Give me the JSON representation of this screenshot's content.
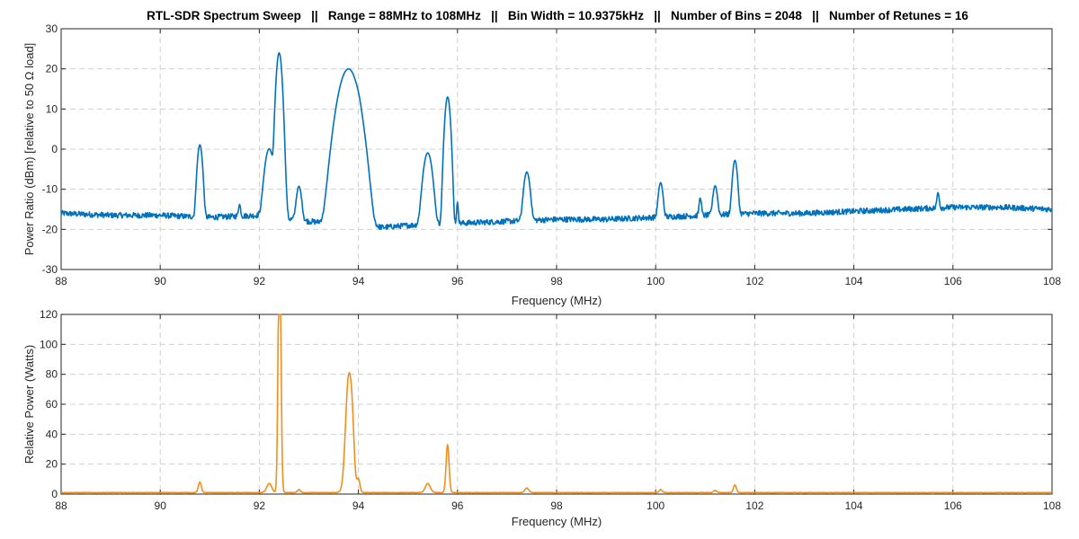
{
  "title": "RTL-SDR Spectrum Sweep   ||   Range = 88MHz to 108MHz   ||   Bin Width = 10.9375kHz   ||   Number of Bins = 2048   ||   Number of Retunes = 16",
  "chart_data": [
    {
      "type": "line",
      "xlabel": "Frequency (MHz)",
      "ylabel": "Power Ratio (dBm)  [relative to 50 Ω load]",
      "xlim": [
        88,
        108
      ],
      "ylim": [
        -30,
        30
      ],
      "xticks": [
        88,
        90,
        92,
        94,
        96,
        98,
        100,
        102,
        104,
        106,
        108
      ],
      "yticks": [
        -30,
        -20,
        -10,
        0,
        10,
        20,
        30
      ],
      "grid": true,
      "color": "#0072BD",
      "baseline": [
        [
          88,
          -16
        ],
        [
          89,
          -16.5
        ],
        [
          90,
          -16.5
        ],
        [
          91,
          -17
        ],
        [
          92,
          -16.5
        ],
        [
          93,
          -18
        ],
        [
          94,
          -19
        ],
        [
          94.5,
          -19.5
        ],
        [
          95,
          -19
        ],
        [
          96,
          -18.5
        ],
        [
          97,
          -18
        ],
        [
          98,
          -17.5
        ],
        [
          99,
          -17.5
        ],
        [
          100,
          -17
        ],
        [
          101,
          -16.5
        ],
        [
          102,
          -16
        ],
        [
          103,
          -16
        ],
        [
          104,
          -15.5
        ],
        [
          105,
          -15
        ],
        [
          106,
          -14.5
        ],
        [
          107,
          -14.5
        ],
        [
          108,
          -15
        ]
      ],
      "peaks": [
        {
          "f": 90.8,
          "peak": 1,
          "width": 0.035
        },
        {
          "f": 91.6,
          "peak": -17,
          "width": 0.02
        },
        {
          "f": 92.2,
          "peak": 0,
          "width": 0.06
        },
        {
          "f": 92.4,
          "peak": 24,
          "width": 0.035
        },
        {
          "f": 92.5,
          "peak": -7,
          "width": 0.03
        },
        {
          "f": 92.8,
          "peak": -10,
          "width": 0.04
        },
        {
          "f": 93.8,
          "peak": 20,
          "width": 0.12
        },
        {
          "f": 94.0,
          "peak": 2,
          "width": 0.035
        },
        {
          "f": 95.4,
          "peak": -1,
          "width": 0.06
        },
        {
          "f": 95.8,
          "peak": 13,
          "width": 0.035
        },
        {
          "f": 96.0,
          "peak": -15,
          "width": 0.015
        },
        {
          "f": 97.4,
          "peak": -6,
          "width": 0.045
        },
        {
          "f": 100.1,
          "peak": -9,
          "width": 0.035
        },
        {
          "f": 100.9,
          "peak": -14,
          "width": 0.02
        },
        {
          "f": 101.2,
          "peak": -10,
          "width": 0.035
        },
        {
          "f": 101.6,
          "peak": -3,
          "width": 0.035
        },
        {
          "f": 105.7,
          "peak": -13,
          "width": 0.02
        }
      ]
    },
    {
      "type": "line",
      "xlabel": "Frequency (MHz)",
      "ylabel": "Relative Power (Watts)",
      "xlim": [
        88,
        108
      ],
      "ylim": [
        0,
        120
      ],
      "xticks": [
        88,
        90,
        92,
        94,
        96,
        98,
        100,
        102,
        104,
        106,
        108
      ],
      "yticks": [
        0,
        20,
        40,
        60,
        80,
        100,
        120
      ],
      "grid": true,
      "color": "#F28E1A",
      "baseline_value": 1,
      "peaks": [
        {
          "f": 90.8,
          "peak": 7,
          "width": 0.03
        },
        {
          "f": 92.2,
          "peak": 6,
          "width": 0.05
        },
        {
          "f": 92.4,
          "peak": 116,
          "width": 0.025
        },
        {
          "f": 92.42,
          "peak": 84,
          "width": 0.025
        },
        {
          "f": 92.8,
          "peak": 2,
          "width": 0.03
        },
        {
          "f": 93.8,
          "peak": 75,
          "width": 0.06
        },
        {
          "f": 93.88,
          "peak": 28,
          "width": 0.04
        },
        {
          "f": 94.0,
          "peak": 9,
          "width": 0.03
        },
        {
          "f": 95.4,
          "peak": 6,
          "width": 0.05
        },
        {
          "f": 95.8,
          "peak": 32,
          "width": 0.03
        },
        {
          "f": 97.4,
          "peak": 3,
          "width": 0.04
        },
        {
          "f": 100.1,
          "peak": 2,
          "width": 0.03
        },
        {
          "f": 101.2,
          "peak": 1.5,
          "width": 0.03
        },
        {
          "f": 101.6,
          "peak": 5,
          "width": 0.03
        }
      ]
    }
  ]
}
